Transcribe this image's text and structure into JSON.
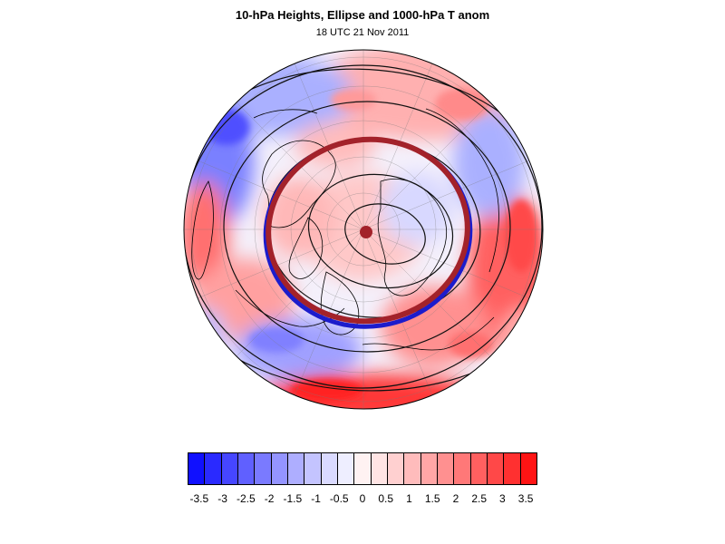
{
  "header": {
    "title": "10-hPa Heights, Ellipse and 1000-hPa T anom",
    "subtitle": "18 UTC 21 Nov 2011"
  },
  "colors": {
    "cold_strong": "#1a1aff",
    "warm_strong": "#ff1a1a",
    "ellipse": "#a3222a",
    "blue_edge": "#1c1ccc",
    "contour": "#111111",
    "coast": "#000000"
  },
  "legend": {
    "colors": [
      "#1010ff",
      "#2a2aff",
      "#4646ff",
      "#6060ff",
      "#7a7aff",
      "#9494ff",
      "#aeaeff",
      "#c4c4ff",
      "#dadaff",
      "#eeeeff",
      "#fff2f2",
      "#ffe4e4",
      "#ffd0d0",
      "#ffbcbc",
      "#ffa6a6",
      "#ff9090",
      "#ff7878",
      "#ff6060",
      "#ff4848",
      "#ff3030",
      "#ff1414"
    ],
    "labels": [
      "-3.5",
      "-3",
      "-2.5",
      "-2",
      "-1.5",
      "-1",
      "-0.5",
      "0",
      "0.5",
      "1",
      "1.5",
      "2",
      "2.5",
      "3",
      "3.5"
    ],
    "label_values": [
      -3.5,
      -3,
      -2.5,
      -2,
      -1.5,
      -1,
      -0.5,
      0,
      0.5,
      1,
      1.5,
      2,
      2.5,
      3,
      3.5
    ],
    "min": -3.75,
    "max": 3.75
  },
  "map": {
    "projection": "north-polar-orthographic",
    "blobs": [
      {
        "region": "north-pacific-upper",
        "color": "#ff9a9a"
      },
      {
        "region": "north-america-west",
        "color": "#9a9aff"
      },
      {
        "region": "north-atlantic-south",
        "color": "#ff6060"
      },
      {
        "region": "europe-east",
        "color": "#ff8080"
      },
      {
        "region": "central-arctic",
        "color": "#ffc4c4"
      },
      {
        "region": "asia-north",
        "color": "#b0b0ff"
      },
      {
        "region": "asia-east",
        "color": "#ffb0b0"
      }
    ]
  }
}
